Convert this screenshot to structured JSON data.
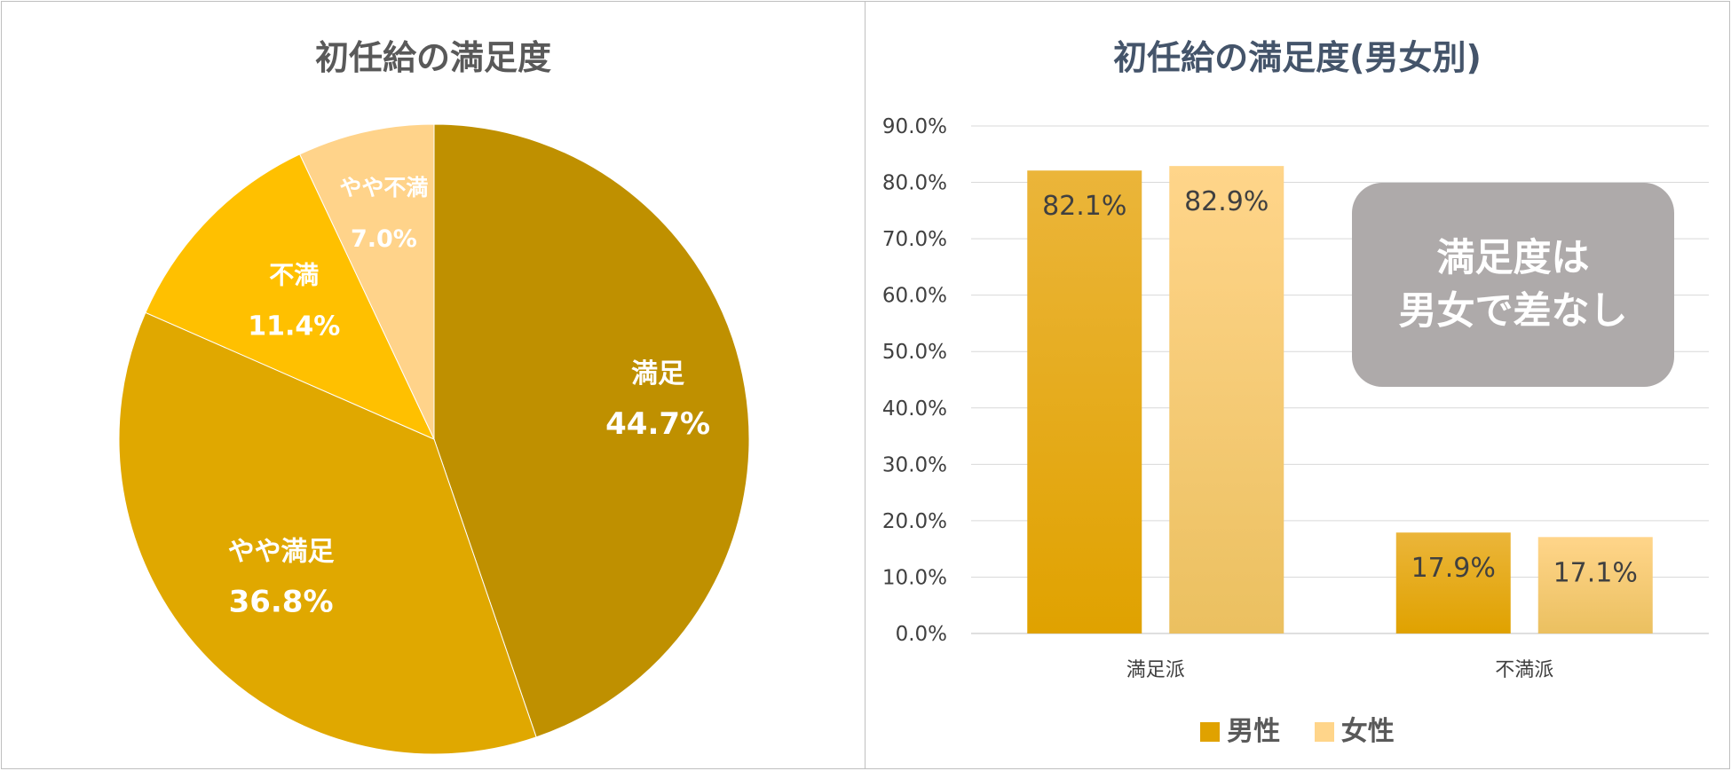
{
  "colors": {
    "pie": [
      "#bf9000",
      "#e0a800",
      "#ffc000",
      "#ffd38a"
    ],
    "male_top": "#ebb53a",
    "male_bottom": "#e0a200",
    "female_top": "#ffd58a",
    "female_bottom": "#ebc060",
    "callout_bg": "#aeaaaa",
    "grid": "#d9d9d9",
    "title_left": "#595959",
    "title_right": "#44546a"
  },
  "chart_data": [
    {
      "type": "pie",
      "title": "初任給の満足度",
      "start_angle_deg": 0,
      "direction": "clockwise",
      "slices": [
        {
          "label": "満足",
          "value": 44.7,
          "display": "44.7%"
        },
        {
          "label": "やや満足",
          "value": 36.8,
          "display": "36.8%"
        },
        {
          "label": "不満",
          "value": 11.4,
          "display": "11.4%"
        },
        {
          "label": "やや不満",
          "value": 7.0,
          "display": "7.0%"
        }
      ]
    },
    {
      "type": "bar",
      "title": "初任給の満足度(男女別)",
      "categories": [
        "満足派",
        "不満派"
      ],
      "series": [
        {
          "name": "男性",
          "values": [
            82.1,
            17.9
          ],
          "labels": [
            "82.1%",
            "17.9%"
          ]
        },
        {
          "name": "女性",
          "values": [
            82.9,
            17.1
          ],
          "labels": [
            "82.9%",
            "17.1%"
          ]
        }
      ],
      "ylim": [
        0,
        90
      ],
      "yticks": [
        "0.0%",
        "10.0%",
        "20.0%",
        "30.0%",
        "40.0%",
        "50.0%",
        "60.0%",
        "70.0%",
        "80.0%",
        "90.0%"
      ],
      "grid": true,
      "legend_position": "bottom",
      "annotation": [
        "満足度は",
        "男女で差なし"
      ]
    }
  ]
}
